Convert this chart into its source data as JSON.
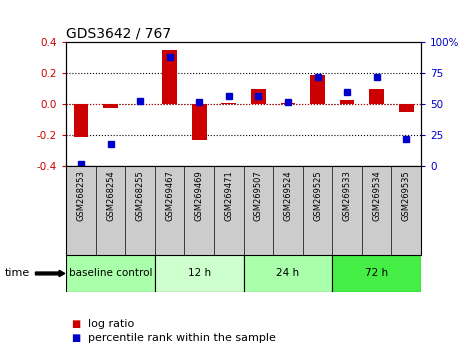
{
  "title": "GDS3642 / 767",
  "samples": [
    "GSM268253",
    "GSM268254",
    "GSM268255",
    "GSM269467",
    "GSM269469",
    "GSM269471",
    "GSM269507",
    "GSM269524",
    "GSM269525",
    "GSM269533",
    "GSM269534",
    "GSM269535"
  ],
  "log_ratio": [
    -0.21,
    -0.02,
    0.0,
    0.35,
    -0.23,
    0.01,
    0.1,
    0.01,
    0.19,
    0.03,
    0.1,
    -0.05
  ],
  "percentile_rank": [
    2,
    18,
    53,
    88,
    52,
    57,
    57,
    52,
    72,
    60,
    72,
    22
  ],
  "bar_color": "#cc0000",
  "dot_color": "#0000cc",
  "ylim_left": [
    -0.4,
    0.4
  ],
  "ylim_right": [
    0,
    100
  ],
  "yticks_left": [
    -0.4,
    -0.2,
    0.0,
    0.2,
    0.4
  ],
  "yticks_right": [
    0,
    25,
    50,
    75,
    100
  ],
  "dotted_hlines": [
    -0.2,
    0.0,
    0.2
  ],
  "groups": [
    {
      "label": "baseline control",
      "start": 0,
      "end": 3,
      "color": "#aaffaa"
    },
    {
      "label": "12 h",
      "start": 3,
      "end": 6,
      "color": "#ccffcc"
    },
    {
      "label": "24 h",
      "start": 6,
      "end": 9,
      "color": "#aaffaa"
    },
    {
      "label": "72 h",
      "start": 9,
      "end": 12,
      "color": "#44ee44"
    }
  ],
  "time_label": "time",
  "legend_log_ratio": "log ratio",
  "legend_percentile": "percentile rank within the sample",
  "background_color": "#ffffff",
  "xtick_bg_color": "#cccccc",
  "bar_color_legend": "#cc0000",
  "dot_color_legend": "#0000cc",
  "tick_color_left": "#cc0000",
  "tick_color_right": "#0000cc"
}
